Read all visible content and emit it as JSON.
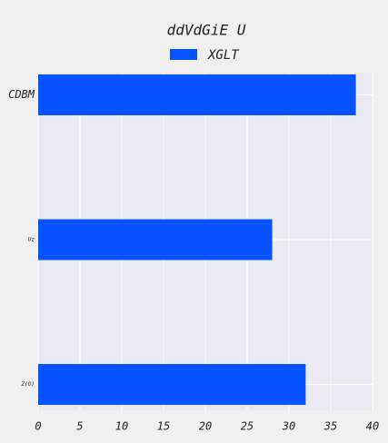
{
  "chart_data": {
    "type": "barh",
    "title": "ddVdGiE U",
    "categories": [
      "CDBM",
      "Uz",
      "Z(O)"
    ],
    "series": [
      {
        "name": "XGLT",
        "color": "#0652ff",
        "values": [
          38,
          28,
          32
        ]
      }
    ],
    "xlim": [
      0,
      40
    ],
    "xticks": [
      0,
      5,
      10,
      15,
      20,
      25,
      30,
      35,
      40
    ],
    "grid": true,
    "legend": "upper center"
  }
}
